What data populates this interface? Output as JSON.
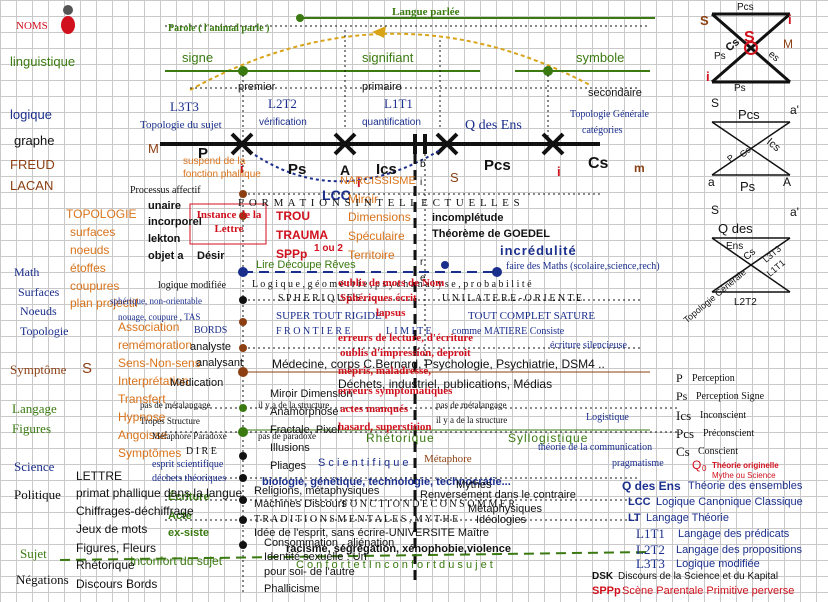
{
  "colors": {
    "red": "#d0101c",
    "green": "#3a7a10",
    "blue": "#1a2e8c",
    "orange": "#d9731a",
    "brown": "#8b3f12",
    "black": "#111111",
    "olive": "#4f6b1a"
  },
  "top": {
    "langue_parlee": "Langue parlée",
    "parole": "Parole ( l'animal parle )"
  },
  "left_column": {
    "noms": "NOMS",
    "linguistique": "linguistique",
    "logique": "logique",
    "graphe": "graphe",
    "freud": "FREUD",
    "lacan": "LACAN",
    "topologie": "TOPOLOGIE",
    "surfaces": "surfaces",
    "noeuds": "noeuds",
    "etoffes": "étoffes",
    "coupures": "coupures",
    "plan_projectif": "plan projectif",
    "math": "Math",
    "surfaces2": "Surfaces",
    "noeuds2": "Noeuds",
    "topologie2": "Topologie",
    "symptome": "Symptôme",
    "symptome_s": "S",
    "langage": "Langage",
    "figures": "Figures",
    "science": "Science",
    "politique": "Politique",
    "sujet": "Sujet",
    "negations": "Négations"
  },
  "signs_row": {
    "signe": "signe",
    "signifiant": "signifiant",
    "symbole": "symbole",
    "premier": "premier",
    "primaire": "primaire",
    "secondaire": "secondaire"
  },
  "levels": {
    "l3t3": "L3T3",
    "l2t2": "L2T2",
    "l1t1": "L1T1",
    "topologie_sujet": "Topologie du sujet",
    "verification": "vérification",
    "quantification": "quantification",
    "q_des_ens": "Q des Ens",
    "topologie_generale": "Topologie Générale",
    "categories": "catégories"
  },
  "axis": {
    "m": "M",
    "p": "P",
    "ps": "Ps",
    "a": "A",
    "ics": "Ics",
    "b": "b",
    "i": "i",
    "r": "r",
    "e": "e",
    "pcs": "Pcs",
    "cs": "Cs",
    "m2": "m",
    "i_red": "i",
    "i_red2": "i",
    "s_red": "S",
    "i_red3": "i"
  },
  "center": {
    "suspend": "suspend de la",
    "fonction_phallique": "fonction phallique",
    "lcc": "LCC",
    "narcissisme": "NARCISSISME",
    "processus": "Processus affectif",
    "unaire": "unaire",
    "incorporel": "incorporel",
    "lekton": "lekton",
    "objet_a": "objet a",
    "desir": "Désir",
    "instance": "Instance de la Lettre",
    "trou": "TROU",
    "trauma": "TRAUMA",
    "sppp": "SPPp",
    "un_ou_deux": "1 ou 2",
    "miroir": "Miroir",
    "dimensions": "Dimensions",
    "speculaire": "Spéculaire",
    "territoire": "Territoire",
    "formations": "F O R M A T I O N S   I N T E L L E C T U E L L E S",
    "incompletude": "incomplétude",
    "theoreme": "Théorème de GOEDEL",
    "incredulite": "incrédulité",
    "lire_decoupe": "Lire Découpe Rêves",
    "faire_maths": "faire des Maths (scolaire,science,rech)",
    "logique_modifiee": "logique modifiée",
    "logique_geometrie": "L o g i q u e ,   g é o m é t r i e ,   p s y c h a n a l y s e ,   p r o b a b i l i t é",
    "oublis_noms": "oublis de mots de Nom",
    "spheriques": "S P H E R I Q U E S",
    "unilatere": "U N I L A T E R E - O R I E N T E",
    "speranten": "Sphériques écrit",
    "spherique_nonorient": "sphérique, non-orientable",
    "nouage": "nouage, coupure , TAS",
    "super_tout": "SUPER TOUT RIGIDE",
    "lapsus": "lapsus",
    "tout_complet": "TOUT COMPLET SATURE",
    "association": "Association",
    "bords": "BORDS",
    "frontiere": "F R O N T I E R E",
    "limite": "L I M I T E",
    "comme_matiere": "comme MATIERE Consiste",
    "erreurs": "erreurs de lecture, d'écriture",
    "ecriture_silencieuse": "écriture silencieuse",
    "rememoration": "remémoration",
    "analyste": "analyste",
    "sens_non_sens": "Sens-Non-sens",
    "analysant": "analysant",
    "oublis_impression": "oublis d'impression, deproit",
    "medecine": "Médecine, corps C.Bernard, Psychologie, Psychiatrie, DSM4 ..",
    "interpretation": "Interprétation",
    "mediocrite": "mépris, maladresse,",
    "medication": "Médication",
    "dechets": "Déchets, industriel, publications, Médias",
    "transfert": "Transfert",
    "hypnose": "Hypnose",
    "angoisse": "Angoisse",
    "symptomes": "Symptômes",
    "miroir_dimension": "Miroir Dimension",
    "anamorphose": "Anamorphose",
    "fractale": "Fractale, Pixel",
    "illusions": "Illusions",
    "pliages": "Pliages",
    "erreurs_sympt": "erreurs symptomatiques",
    "pas_de_metalangage": "pas de métalangage",
    "il_y_a": "il y a de la structure",
    "tropes": "Tropes Structure",
    "actes_manques": "actes manqués",
    "pas_de_metalangage2": "pas de métalangage",
    "il_y_a2": "il y a de la structure",
    "logistique": "Logistique",
    "metaphore": "Métaphore Paradoxe",
    "pas_de_paradoxe": "pas de paradoxe",
    "hasard": "hasard, superstition",
    "rhetorique": "Rhétorique",
    "syllogistique": "Syllogistique",
    "dire": "D I R E",
    "theorie_comm": "théorie de la communication",
    "esprit_scientifique": "esprit scientifique",
    "scientifique_spaced": "S c i e n t i f i q u e",
    "metaphore2": "Métaphore",
    "pragmatisme": "pragmatisme",
    "dechets_theoriques": "déchets théoriques",
    "biologie": "biologie, génétique, technologie, technocratie...",
    "religions": "Religions, métaphysiques",
    "mythes": "Mythes",
    "renversement": "Renversement dans le contraire",
    "ecriture": "Écriture",
    "machines": "Machines Discours",
    "consommer": "F O N C T I O N   D E   C O N S O M M E R",
    "acte": "Acte",
    "metaphysiques": "Métaphysiques",
    "ideologies": "Idéologies",
    "ex_siste": "ex-siste",
    "traditions": "T R A D I T I O N S   M E N T A L E S ,   M Y T H E",
    "idee_esprit": "Idée de l'esprit, sans écrire-UNIVERSITE Maître",
    "consommation": "Consommation , aliénation",
    "racisme": "racisme, ségrégation, xénophobie,violence",
    "identite": "Identité sexuelle : Un",
    "inconfort": "Inconfort du sujet",
    "confort": "C o n f o r t   e t   I n c o n f o r t   d u   s u j e t",
    "pour_soi": "pour soi- de l'autre",
    "phallicisme": "Phallicisme"
  },
  "left_block": {
    "lettre": "LETTRE",
    "primat": "primat phallique dans la langue",
    "chiffrages": "Chiffrages-déchiffrage",
    "jeux": "Jeux de  mots",
    "figures_fleurs": "Figures, Fleurs",
    "rhetorique": "Rhétorique",
    "discours": "Discours  Bords"
  },
  "right_top": {
    "pcs": "Pcs",
    "s": "S",
    "i": "i",
    "m": "M",
    "i2": "i",
    "cs": "Cs",
    "ps": "Ps",
    "s_red": "S",
    "es": "es",
    "ps2": "Ps"
  },
  "right_mid": {
    "s": "S",
    "a_prime": "a'",
    "pcs": "Pcs",
    "ics": "Ics",
    "p": "P",
    "cs": "Cs",
    "a": "a",
    "ps": "Ps",
    "a2": "A",
    "s2": "S",
    "a_prime2": "a'"
  },
  "right_low": {
    "q_des": "Q des",
    "ens": "Ens",
    "cs": "Cs",
    "l3t3": "L3T3",
    "l1t1": "L1T1",
    "topologie_generale": "Topologie Générale",
    "l2t2": "L2T2"
  },
  "legend": [
    {
      "key": "P",
      "text": "Perception"
    },
    {
      "key": "Ps",
      "text": "Perception Signe"
    },
    {
      "key": "Ics",
      "text": "Inconscient"
    },
    {
      "key": "Pcs",
      "text": "Préconscient"
    },
    {
      "key": "Cs",
      "text": "Conscient"
    }
  ],
  "legend2": {
    "q0_label": "Q",
    "q0_sub": "0",
    "theorie_originelle": "Théorie originelle",
    "mythe_science": "Mythe ou Science",
    "q_des_ens": "Q des Ens",
    "q_text": "Théorie des ensembles",
    "lcc": "LCC",
    "lcc_text": "Logique Canonique Classique",
    "lt": "LT",
    "lt_text": "Langage Théorie",
    "l1t1": "L1T1",
    "l1t1_text": "Langage des prédicats",
    "l2t2": "L2T2",
    "l2t2_text": "Langage des propositions",
    "l3t3": "L3T3",
    "l3t3_text": "Logique modifiée",
    "dsk": "DSK",
    "dsk_text": "Discours de la Science et du  Kapital",
    "sppp": "SPPp",
    "sppp_text": "Scène Parentale Primitive perverse"
  }
}
